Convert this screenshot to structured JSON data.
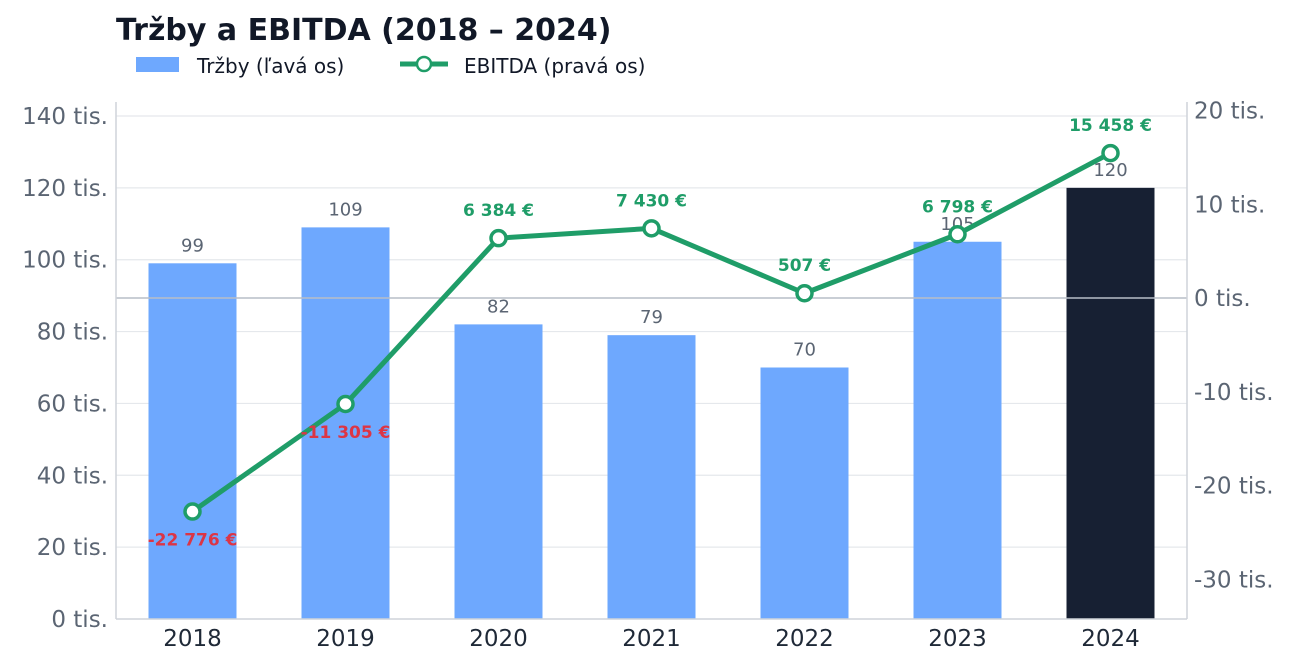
{
  "chart_data": {
    "type": "bar+line",
    "title": "Tržby a EBITDA (2018 – 2024)",
    "categories": [
      "2018",
      "2019",
      "2020",
      "2021",
      "2022",
      "2023",
      "2024"
    ],
    "legend": {
      "placement": "top-left"
    },
    "grid": true,
    "series": [
      {
        "name": "Tržby (ľavá os)",
        "type": "bar",
        "axis": "left",
        "values": [
          99,
          109,
          82,
          79,
          70,
          105,
          120
        ],
        "data_labels": [
          "99",
          "109",
          "82",
          "79",
          "70",
          "105",
          "120"
        ],
        "color": "#6ea8fe",
        "highlight": {
          "category": "2024",
          "color": "#172033"
        }
      },
      {
        "name": "EBITDA (pravá os)",
        "type": "line",
        "axis": "right",
        "values": [
          -22776,
          -11305,
          6384,
          7430,
          507,
          6798,
          15458
        ],
        "data_labels": [
          "-22 776 €",
          "-11 305 €",
          "6 384 €",
          "7 430 €",
          "507 €",
          "6 798 €",
          "15 458 €"
        ],
        "color": "#1f9d68",
        "negative_label_color": "#dc3545"
      }
    ],
    "y_left": {
      "range": [
        0,
        140000
      ],
      "ticks": [
        0,
        20000,
        40000,
        60000,
        80000,
        100000,
        120000,
        140000
      ],
      "tick_labels": [
        "0 tis.",
        "20 tis.",
        "40 tis.",
        "60 tis.",
        "80 tis.",
        "100 tis.",
        "120 tis.",
        "140 tis."
      ]
    },
    "y_right": {
      "range": [
        -34000,
        20000
      ],
      "ticks": [
        -30000,
        -20000,
        -10000,
        0,
        10000,
        20000
      ],
      "tick_labels": [
        "-30 tis.",
        "-20 tis.",
        "-10 tis.",
        "0 tis.",
        "10 tis.",
        "20 tis."
      ]
    }
  }
}
